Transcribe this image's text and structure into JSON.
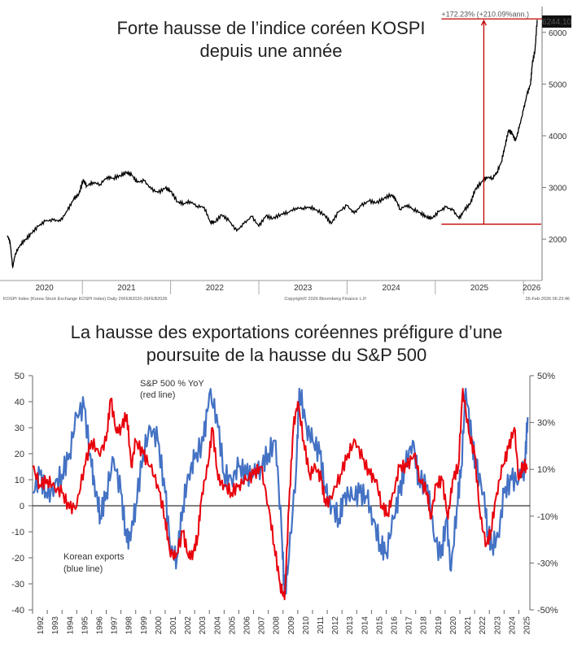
{
  "chart_data": [
    {
      "type": "line",
      "title_line1": "Forte hausse de l’indice coréen KOSPI",
      "title_line2": "depuis une année",
      "x_ticks": [
        "2020",
        "2021",
        "2022",
        "2023",
        "2024",
        "2025",
        "2026"
      ],
      "y_ticks": [
        "2000",
        "3000",
        "4000",
        "5000",
        "6000"
      ],
      "ylim": [
        1200,
        6500
      ],
      "last_value_label": "6244.10",
      "annotation": "+172.23% (+210.09%ann.)",
      "annotation_base": 2290,
      "footer_left": "KOSPI Index (Korea Stock Exchange KOSPI Index) Daily 26FEB2020-26FEB2026",
      "footer_center": "Copyright© 2026 Bloomberg Finance L.P.",
      "footer_right": "26-Feb-2026 06:23:46",
      "series": [
        {
          "name": "KOSPI",
          "color": "#000000",
          "points": [
            [
              2020.15,
              2070
            ],
            [
              2020.18,
              1950
            ],
            [
              2020.21,
              1460
            ],
            [
              2020.24,
              1720
            ],
            [
              2020.3,
              1900
            ],
            [
              2020.36,
              2000
            ],
            [
              2020.42,
              2110
            ],
            [
              2020.5,
              2250
            ],
            [
              2020.58,
              2350
            ],
            [
              2020.67,
              2370
            ],
            [
              2020.75,
              2350
            ],
            [
              2020.83,
              2550
            ],
            [
              2020.9,
              2770
            ],
            [
              2020.96,
              2870
            ],
            [
              2021.01,
              3150
            ],
            [
              2021.05,
              3030
            ],
            [
              2021.12,
              3100
            ],
            [
              2021.2,
              3060
            ],
            [
              2021.28,
              3200
            ],
            [
              2021.35,
              3180
            ],
            [
              2021.43,
              3230
            ],
            [
              2021.5,
              3290
            ],
            [
              2021.56,
              3240
            ],
            [
              2021.62,
              3100
            ],
            [
              2021.7,
              3130
            ],
            [
              2021.78,
              2970
            ],
            [
              2021.86,
              2900
            ],
            [
              2021.94,
              2990
            ],
            [
              2022.0,
              2930
            ],
            [
              2022.08,
              2720
            ],
            [
              2022.15,
              2690
            ],
            [
              2022.22,
              2730
            ],
            [
              2022.3,
              2640
            ],
            [
              2022.38,
              2620
            ],
            [
              2022.45,
              2330
            ],
            [
              2022.5,
              2330
            ],
            [
              2022.58,
              2470
            ],
            [
              2022.66,
              2360
            ],
            [
              2022.75,
              2160
            ],
            [
              2022.83,
              2300
            ],
            [
              2022.92,
              2440
            ],
            [
              2023.0,
              2250
            ],
            [
              2023.08,
              2450
            ],
            [
              2023.16,
              2400
            ],
            [
              2023.25,
              2480
            ],
            [
              2023.33,
              2520
            ],
            [
              2023.42,
              2600
            ],
            [
              2023.5,
              2600
            ],
            [
              2023.58,
              2620
            ],
            [
              2023.66,
              2560
            ],
            [
              2023.75,
              2460
            ],
            [
              2023.82,
              2300
            ],
            [
              2023.9,
              2520
            ],
            [
              2024.0,
              2650
            ],
            [
              2024.08,
              2500
            ],
            [
              2024.16,
              2650
            ],
            [
              2024.25,
              2740
            ],
            [
              2024.33,
              2700
            ],
            [
              2024.42,
              2790
            ],
            [
              2024.5,
              2860
            ],
            [
              2024.55,
              2780
            ],
            [
              2024.6,
              2580
            ],
            [
              2024.68,
              2660
            ],
            [
              2024.75,
              2580
            ],
            [
              2024.83,
              2510
            ],
            [
              2024.9,
              2430
            ],
            [
              2024.96,
              2400
            ],
            [
              2025.04,
              2530
            ],
            [
              2025.12,
              2620
            ],
            [
              2025.2,
              2560
            ],
            [
              2025.27,
              2400
            ],
            [
              2025.33,
              2560
            ],
            [
              2025.4,
              2700
            ],
            [
              2025.45,
              2950
            ],
            [
              2025.52,
              3100
            ],
            [
              2025.58,
              3200
            ],
            [
              2025.65,
              3180
            ],
            [
              2025.7,
              3300
            ],
            [
              2025.75,
              3500
            ],
            [
              2025.79,
              3800
            ],
            [
              2025.83,
              4100
            ],
            [
              2025.87,
              4050
            ],
            [
              2025.91,
              3900
            ],
            [
              2025.95,
              4150
            ],
            [
              2026.0,
              4500
            ],
            [
              2026.04,
              4800
            ],
            [
              2026.08,
              5000
            ],
            [
              2026.1,
              5400
            ],
            [
              2026.13,
              5650
            ],
            [
              2026.155,
              6244
            ]
          ]
        }
      ]
    },
    {
      "type": "line",
      "title_line1": "La hausse des exportations coréennes préfigure d’une",
      "title_line2": "poursuite de la hausse du S&P 500",
      "x_ticks": [
        "1992",
        "1993",
        "1994",
        "1995",
        "1996",
        "1997",
        "1998",
        "1999",
        "2000",
        "2001",
        "2002",
        "2003",
        "2004",
        "2005",
        "2006",
        "2007",
        "2008",
        "2009",
        "2010",
        "2011",
        "2012",
        "2013",
        "2014",
        "2015",
        "2016",
        "2017",
        "2018",
        "2019",
        "2020",
        "2021",
        "2022",
        "2023",
        "2024",
        "2025"
      ],
      "y_left_ticks": [
        "50",
        "40",
        "30",
        "20",
        "10",
        "0",
        "-10",
        "-20",
        "-30",
        "-40"
      ],
      "y_left_lim": [
        -40,
        50
      ],
      "y_right_ticks": [
        "50%",
        "30%",
        "10%",
        "-10%",
        "-30%",
        "-50%"
      ],
      "red_label_line1": "S&P 500 % YoY",
      "red_label_line2": "(red line)",
      "blue_label_line1": "Korean exports",
      "blue_label_line2": "(blue line)",
      "series": [
        {
          "name": "Korean exports",
          "color": "#4472c4",
          "points": [
            [
              1992.0,
              5
            ],
            [
              1992.5,
              12
            ],
            [
              1993.0,
              3
            ],
            [
              1993.5,
              8
            ],
            [
              1994.0,
              12
            ],
            [
              1994.5,
              20
            ],
            [
              1995.0,
              35
            ],
            [
              1995.5,
              38
            ],
            [
              1996.0,
              15
            ],
            [
              1996.3,
              5
            ],
            [
              1996.6,
              -4
            ],
            [
              1997.0,
              5
            ],
            [
              1997.5,
              18
            ],
            [
              1998.0,
              5
            ],
            [
              1998.4,
              -14
            ],
            [
              1998.7,
              -10
            ],
            [
              1999.0,
              0
            ],
            [
              1999.5,
              20
            ],
            [
              2000.0,
              30
            ],
            [
              2000.5,
              25
            ],
            [
              2001.0,
              5
            ],
            [
              2001.4,
              -18
            ],
            [
              2001.8,
              -20
            ],
            [
              2002.2,
              0
            ],
            [
              2002.6,
              12
            ],
            [
              2003.0,
              18
            ],
            [
              2003.6,
              25
            ],
            [
              2004.0,
              43
            ],
            [
              2004.5,
              35
            ],
            [
              2005.0,
              12
            ],
            [
              2005.5,
              10
            ],
            [
              2006.0,
              15
            ],
            [
              2006.5,
              12
            ],
            [
              2007.0,
              12
            ],
            [
              2007.5,
              15
            ],
            [
              2008.0,
              20
            ],
            [
              2008.5,
              25
            ],
            [
              2008.9,
              -10
            ],
            [
              2009.1,
              -34
            ],
            [
              2009.4,
              -20
            ],
            [
              2009.9,
              15
            ],
            [
              2010.1,
              45
            ],
            [
              2010.6,
              30
            ],
            [
              2011.0,
              25
            ],
            [
              2011.5,
              20
            ],
            [
              2011.9,
              5
            ],
            [
              2012.3,
              0
            ],
            [
              2012.8,
              -5
            ],
            [
              2013.2,
              5
            ],
            [
              2013.7,
              3
            ],
            [
              2014.2,
              5
            ],
            [
              2014.7,
              3
            ],
            [
              2015.1,
              -5
            ],
            [
              2015.6,
              -15
            ],
            [
              2016.0,
              -18
            ],
            [
              2016.5,
              -5
            ],
            [
              2016.9,
              5
            ],
            [
              2017.3,
              15
            ],
            [
              2017.8,
              25
            ],
            [
              2018.2,
              10
            ],
            [
              2018.8,
              8
            ],
            [
              2019.2,
              -10
            ],
            [
              2019.7,
              -20
            ],
            [
              2020.1,
              -5
            ],
            [
              2020.4,
              -25
            ],
            [
              2020.8,
              0
            ],
            [
              2021.1,
              15
            ],
            [
              2021.4,
              45
            ],
            [
              2021.8,
              25
            ],
            [
              2022.1,
              15
            ],
            [
              2022.6,
              5
            ],
            [
              2022.9,
              -10
            ],
            [
              2023.2,
              -15
            ],
            [
              2023.6,
              -12
            ],
            [
              2024.0,
              5
            ],
            [
              2024.5,
              10
            ],
            [
              2025.0,
              10
            ],
            [
              2025.4,
              15
            ],
            [
              2025.6,
              34
            ]
          ]
        },
        {
          "name": "S&P 500 % YoY",
          "color": "#e8000b",
          "points": [
            [
              1992.0,
              15
            ],
            [
              1992.5,
              8
            ],
            [
              1993.0,
              10
            ],
            [
              1993.5,
              7
            ],
            [
              1994.0,
              5
            ],
            [
              1994.5,
              -1
            ],
            [
              1995.0,
              0
            ],
            [
              1995.5,
              15
            ],
            [
              1996.0,
              25
            ],
            [
              1996.5,
              20
            ],
            [
              1997.0,
              25
            ],
            [
              1997.3,
              41
            ],
            [
              1997.7,
              28
            ],
            [
              1998.0,
              30
            ],
            [
              1998.4,
              35
            ],
            [
              1998.7,
              15
            ],
            [
              1999.0,
              25
            ],
            [
              1999.5,
              20
            ],
            [
              2000.0,
              15
            ],
            [
              2000.5,
              8
            ],
            [
              2001.0,
              -5
            ],
            [
              2001.3,
              -17
            ],
            [
              2001.7,
              -20
            ],
            [
              2002.2,
              -10
            ],
            [
              2002.6,
              -20
            ],
            [
              2002.9,
              -18
            ],
            [
              2003.2,
              -12
            ],
            [
              2003.5,
              5
            ],
            [
              2003.9,
              15
            ],
            [
              2004.2,
              30
            ],
            [
              2004.6,
              10
            ],
            [
              2005.0,
              8
            ],
            [
              2005.5,
              5
            ],
            [
              2006.0,
              8
            ],
            [
              2006.5,
              10
            ],
            [
              2007.0,
              12
            ],
            [
              2007.5,
              15
            ],
            [
              2008.0,
              0
            ],
            [
              2008.4,
              -15
            ],
            [
              2008.8,
              -30
            ],
            [
              2009.1,
              -36
            ],
            [
              2009.4,
              0
            ],
            [
              2009.7,
              30
            ],
            [
              2010.0,
              40
            ],
            [
              2010.4,
              25
            ],
            [
              2010.8,
              12
            ],
            [
              2011.2,
              15
            ],
            [
              2011.6,
              10
            ],
            [
              2011.9,
              0
            ],
            [
              2012.4,
              5
            ],
            [
              2012.9,
              12
            ],
            [
              2013.4,
              20
            ],
            [
              2013.9,
              25
            ],
            [
              2014.4,
              18
            ],
            [
              2014.9,
              12
            ],
            [
              2015.3,
              10
            ],
            [
              2015.7,
              0
            ],
            [
              2016.1,
              -3
            ],
            [
              2016.5,
              5
            ],
            [
              2016.9,
              15
            ],
            [
              2017.4,
              15
            ],
            [
              2017.9,
              20
            ],
            [
              2018.3,
              10
            ],
            [
              2018.8,
              5
            ],
            [
              2019.0,
              -5
            ],
            [
              2019.4,
              8
            ],
            [
              2019.8,
              10
            ],
            [
              2020.2,
              -5
            ],
            [
              2020.5,
              10
            ],
            [
              2020.9,
              15
            ],
            [
              2021.2,
              45
            ],
            [
              2021.6,
              28
            ],
            [
              2022.0,
              20
            ],
            [
              2022.4,
              -5
            ],
            [
              2022.8,
              -15
            ],
            [
              2023.1,
              -10
            ],
            [
              2023.5,
              5
            ],
            [
              2023.9,
              15
            ],
            [
              2024.3,
              22
            ],
            [
              2024.7,
              30
            ],
            [
              2025.0,
              10
            ],
            [
              2025.3,
              16
            ],
            [
              2025.6,
              14
            ]
          ]
        }
      ]
    }
  ]
}
